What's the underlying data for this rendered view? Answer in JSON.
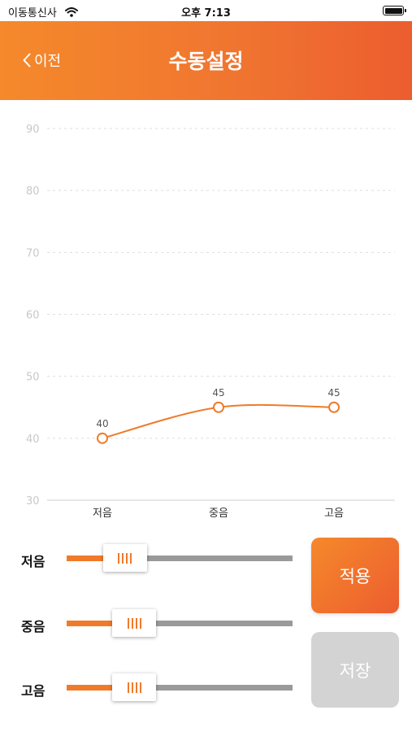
{
  "status_bar": {
    "carrier": "이동통신사",
    "time": "오후 7:13"
  },
  "header": {
    "back_label": "이전",
    "title": "수동설정"
  },
  "colors": {
    "accent": "#f07a2a",
    "accent_dark": "#ec5d2f",
    "track": "#9a9a9a",
    "disabled": "#d3d3d3",
    "grid": "#dddddd"
  },
  "chart_data": {
    "type": "line",
    "categories": [
      "저음",
      "중음",
      "고음"
    ],
    "values": [
      40,
      45,
      45
    ],
    "data_labels": [
      "40",
      "45",
      "45"
    ],
    "y_ticks": [
      "30",
      "40",
      "50",
      "60",
      "70",
      "80",
      "90"
    ],
    "ylim": [
      30,
      90
    ],
    "grid": true,
    "smooth": true
  },
  "sliders": [
    {
      "label": "저음",
      "value": 40
    },
    {
      "label": "중음",
      "value": 45
    },
    {
      "label": "고음",
      "value": 45
    }
  ],
  "buttons": {
    "apply_label": "적용",
    "save_label": "저장"
  }
}
